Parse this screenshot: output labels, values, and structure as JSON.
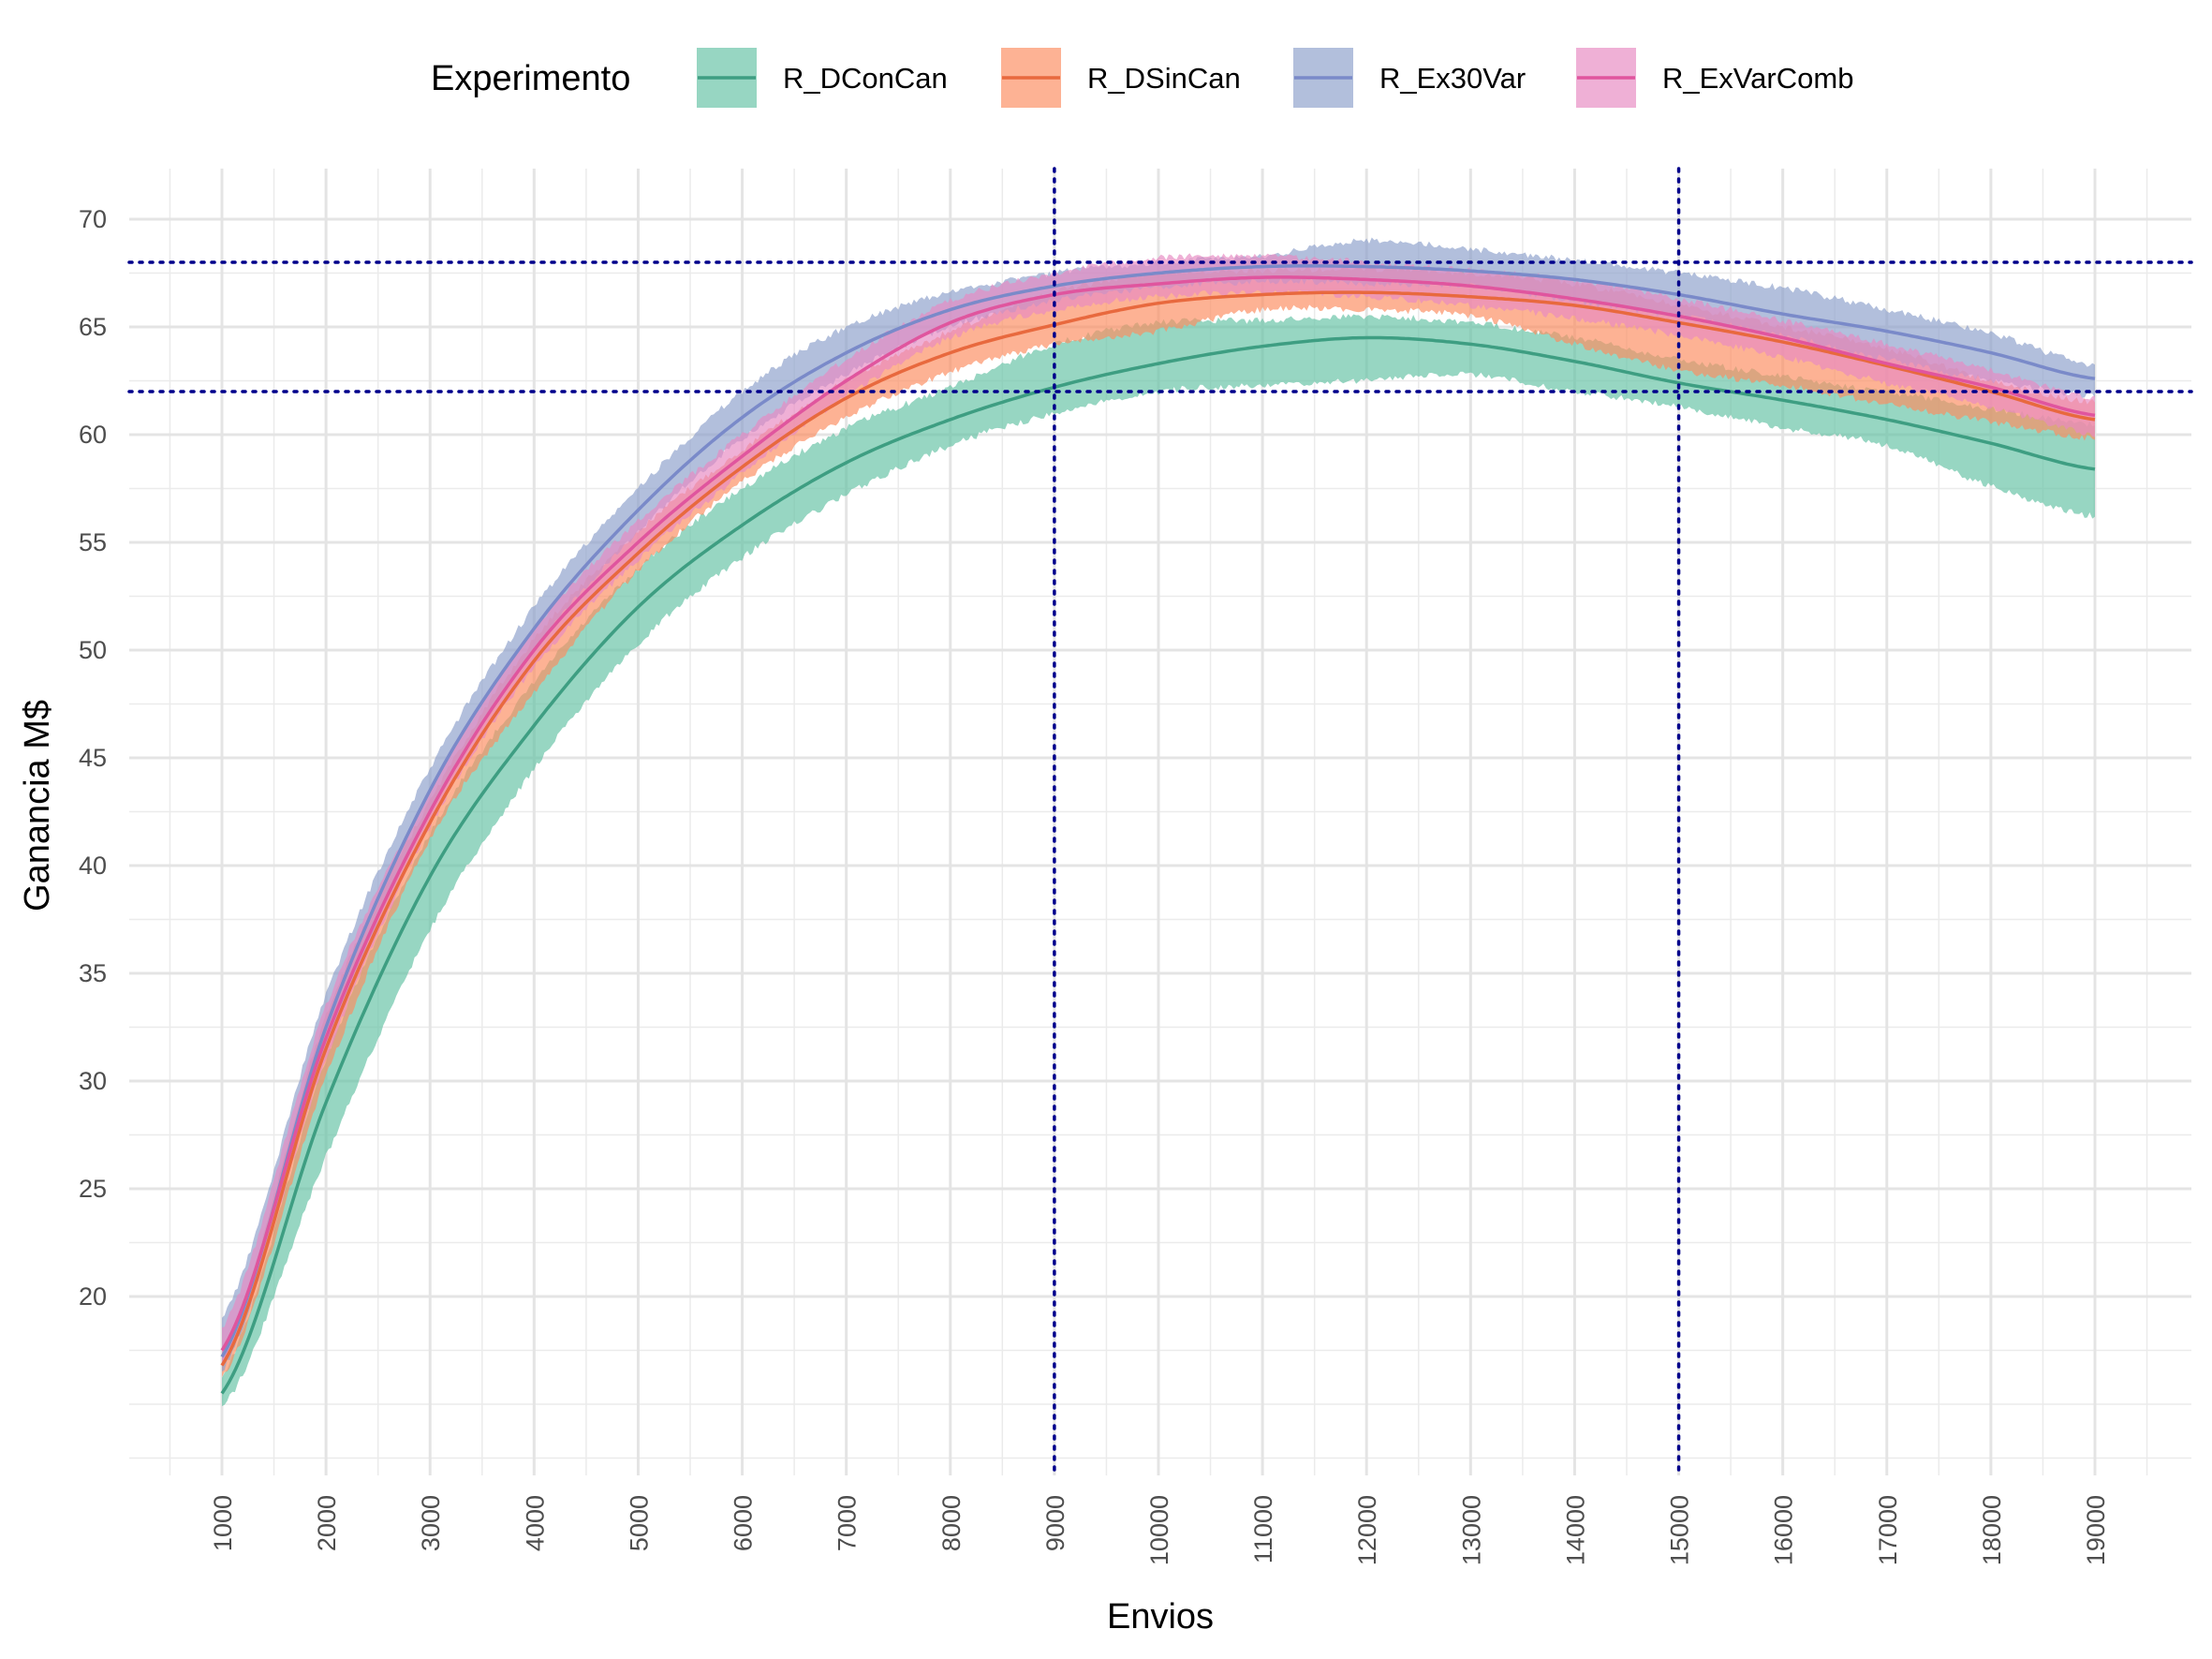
{
  "chart_data": {
    "type": "line",
    "title": "",
    "xlabel": "Envios",
    "ylabel": "Ganancia M$",
    "xlim": [
      500,
      19500
    ],
    "ylim": [
      13,
      72
    ],
    "x_ticks": [
      1000,
      2000,
      3000,
      4000,
      5000,
      6000,
      7000,
      8000,
      9000,
      10000,
      11000,
      12000,
      13000,
      14000,
      15000,
      16000,
      17000,
      18000,
      19000
    ],
    "y_ticks": [
      20,
      25,
      30,
      35,
      40,
      45,
      50,
      55,
      60,
      65,
      70
    ],
    "grid": true,
    "legend": {
      "title": "Experimento",
      "position": "top"
    },
    "reference_lines": {
      "horizontal": [
        68,
        62
      ],
      "vertical": [
        9000,
        15000
      ],
      "color": "#00008B",
      "style": "dotted"
    },
    "x": [
      1000,
      2000,
      3000,
      4000,
      5000,
      6000,
      7000,
      8000,
      9000,
      10000,
      11000,
      12000,
      13000,
      14000,
      15000,
      16000,
      17000,
      18000,
      19000
    ],
    "series": [
      {
        "name": "R_DConCan",
        "line_color": "#3E9E82",
        "fill_color": "#66C2A5",
        "values": [
          15.5,
          29.0,
          39.5,
          46.5,
          52.0,
          55.8,
          58.7,
          60.7,
          62.2,
          63.3,
          64.1,
          64.5,
          64.2,
          63.4,
          62.4,
          61.6,
          60.7,
          59.6,
          58.4
        ],
        "lower": [
          14.8,
          26.5,
          37.0,
          44.5,
          50.3,
          54.3,
          57.2,
          59.5,
          61.0,
          62.0,
          62.3,
          62.5,
          62.8,
          62.0,
          61.3,
          60.3,
          59.5,
          57.6,
          56.2
        ],
        "upper": [
          16.3,
          31.0,
          41.5,
          48.5,
          53.8,
          57.5,
          60.3,
          62.2,
          64.2,
          65.2,
          65.3,
          65.5,
          65.2,
          64.5,
          63.5,
          62.7,
          62.0,
          61.2,
          60.5
        ]
      },
      {
        "name": "R_DSinCan",
        "line_color": "#E8693E",
        "fill_color": "#FC8D62",
        "values": [
          16.8,
          31.5,
          42.0,
          49.5,
          54.5,
          58.5,
          61.7,
          63.8,
          65.1,
          66.1,
          66.5,
          66.6,
          66.4,
          66.0,
          65.2,
          64.3,
          63.2,
          62.0,
          60.7
        ],
        "lower": [
          16.2,
          30.2,
          41.2,
          48.0,
          53.7,
          57.8,
          60.8,
          62.9,
          64.2,
          64.8,
          65.8,
          65.8,
          65.5,
          64.2,
          63.0,
          62.3,
          61.4,
          60.6,
          59.8
        ],
        "upper": [
          17.5,
          33.0,
          43.0,
          50.5,
          55.5,
          59.3,
          62.5,
          64.8,
          66.6,
          67.5,
          67.6,
          67.7,
          67.5,
          67.0,
          66.0,
          65.0,
          64.0,
          62.5,
          61.5
        ]
      },
      {
        "name": "R_Ex30Var",
        "line_color": "#7A8AC9",
        "fill_color": "#8DA0CB",
        "values": [
          17.2,
          32.5,
          43.5,
          51.0,
          56.5,
          60.8,
          63.8,
          65.8,
          66.9,
          67.5,
          67.8,
          67.8,
          67.6,
          67.2,
          66.5,
          65.6,
          64.8,
          63.8,
          62.6
        ],
        "lower": [
          16.5,
          31.5,
          42.5,
          50.0,
          55.5,
          59.8,
          62.8,
          65.0,
          66.2,
          66.8,
          67.1,
          67.0,
          66.9,
          66.2,
          65.5,
          64.6,
          63.5,
          62.5,
          61.8
        ],
        "upper": [
          19.0,
          34.0,
          44.5,
          52.0,
          57.5,
          62.0,
          65.0,
          66.6,
          67.5,
          68.0,
          68.3,
          69.0,
          68.6,
          68.1,
          67.5,
          66.8,
          65.8,
          64.7,
          63.2
        ]
      },
      {
        "name": "R_ExVarComb",
        "line_color": "#E0559E",
        "fill_color": "#E78AC3",
        "values": [
          17.5,
          32.0,
          42.5,
          50.0,
          55.0,
          59.0,
          62.5,
          65.2,
          66.5,
          67.0,
          67.3,
          67.2,
          66.9,
          66.3,
          65.5,
          64.5,
          63.3,
          62.2,
          60.9
        ],
        "lower": [
          16.8,
          31.0,
          41.8,
          49.2,
          54.2,
          58.2,
          61.8,
          64.5,
          65.8,
          66.4,
          66.6,
          66.4,
          66.0,
          65.4,
          64.6,
          63.6,
          62.4,
          61.3,
          60.0
        ],
        "upper": [
          18.5,
          33.5,
          43.5,
          51.0,
          56.0,
          60.0,
          63.5,
          66.2,
          67.5,
          68.2,
          68.3,
          68.0,
          67.6,
          67.2,
          66.3,
          65.3,
          64.2,
          63.0,
          61.7
        ]
      }
    ]
  }
}
